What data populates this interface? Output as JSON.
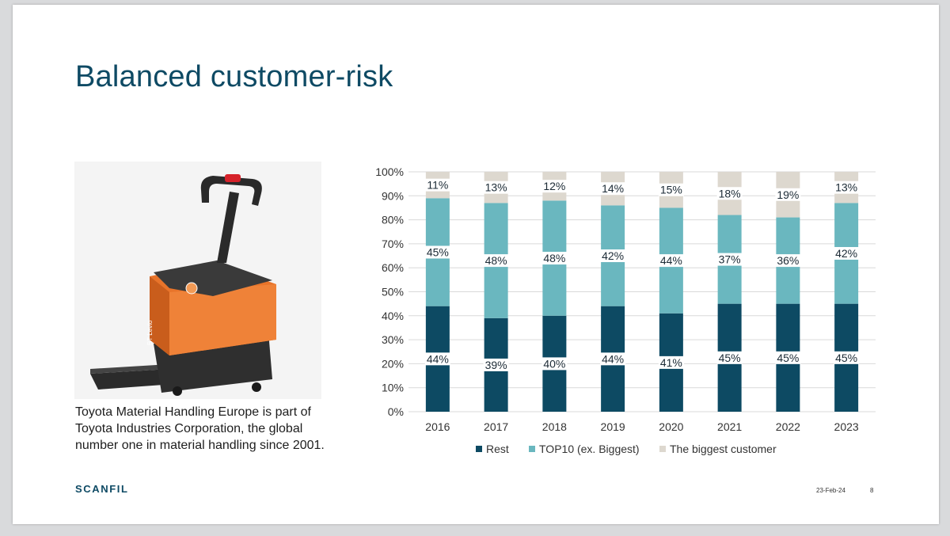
{
  "slide": {
    "title": "Balanced customer-risk",
    "caption": "Toyota Material Handling Europe is part of Toyota Industries Corporation, the global number one in material handling since 2001.",
    "logo_text": "SCANFIL",
    "date": "23-Feb-24",
    "page_number": "8",
    "photo_brand_text": "BT Levio"
  },
  "colors": {
    "title": "#0e4a64",
    "rest": "#0d4a63",
    "top10": "#6ab7bf",
    "biggest": "#ddd8cf",
    "truck_orange": "#e8742a"
  },
  "chart_data": {
    "type": "bar",
    "stacked": true,
    "categories": [
      "2016",
      "2017",
      "2018",
      "2019",
      "2020",
      "2021",
      "2022",
      "2023"
    ],
    "series": [
      {
        "name": "Rest",
        "values": [
          44,
          39,
          40,
          44,
          41,
          45,
          45,
          45
        ],
        "labels": [
          "44%",
          "39%",
          "40%",
          "44%",
          "41%",
          "45%",
          "45%",
          "45%"
        ]
      },
      {
        "name": "TOP10 (ex. Biggest)",
        "values": [
          45,
          48,
          48,
          42,
          44,
          37,
          36,
          42
        ],
        "labels": [
          "45%",
          "48%",
          "48%",
          "42%",
          "44%",
          "37%",
          "36%",
          "42%"
        ]
      },
      {
        "name": "The biggest customer",
        "values": [
          11,
          13,
          12,
          14,
          15,
          18,
          19,
          13
        ],
        "labels": [
          "11%",
          "13%",
          "12%",
          "14%",
          "15%",
          "18%",
          "19%",
          "13%"
        ]
      }
    ],
    "y_ticks": [
      "0%",
      "10%",
      "20%",
      "30%",
      "40%",
      "50%",
      "60%",
      "70%",
      "80%",
      "90%",
      "100%"
    ],
    "ylim": [
      0,
      100
    ],
    "grid": true,
    "legend": "bottom"
  }
}
